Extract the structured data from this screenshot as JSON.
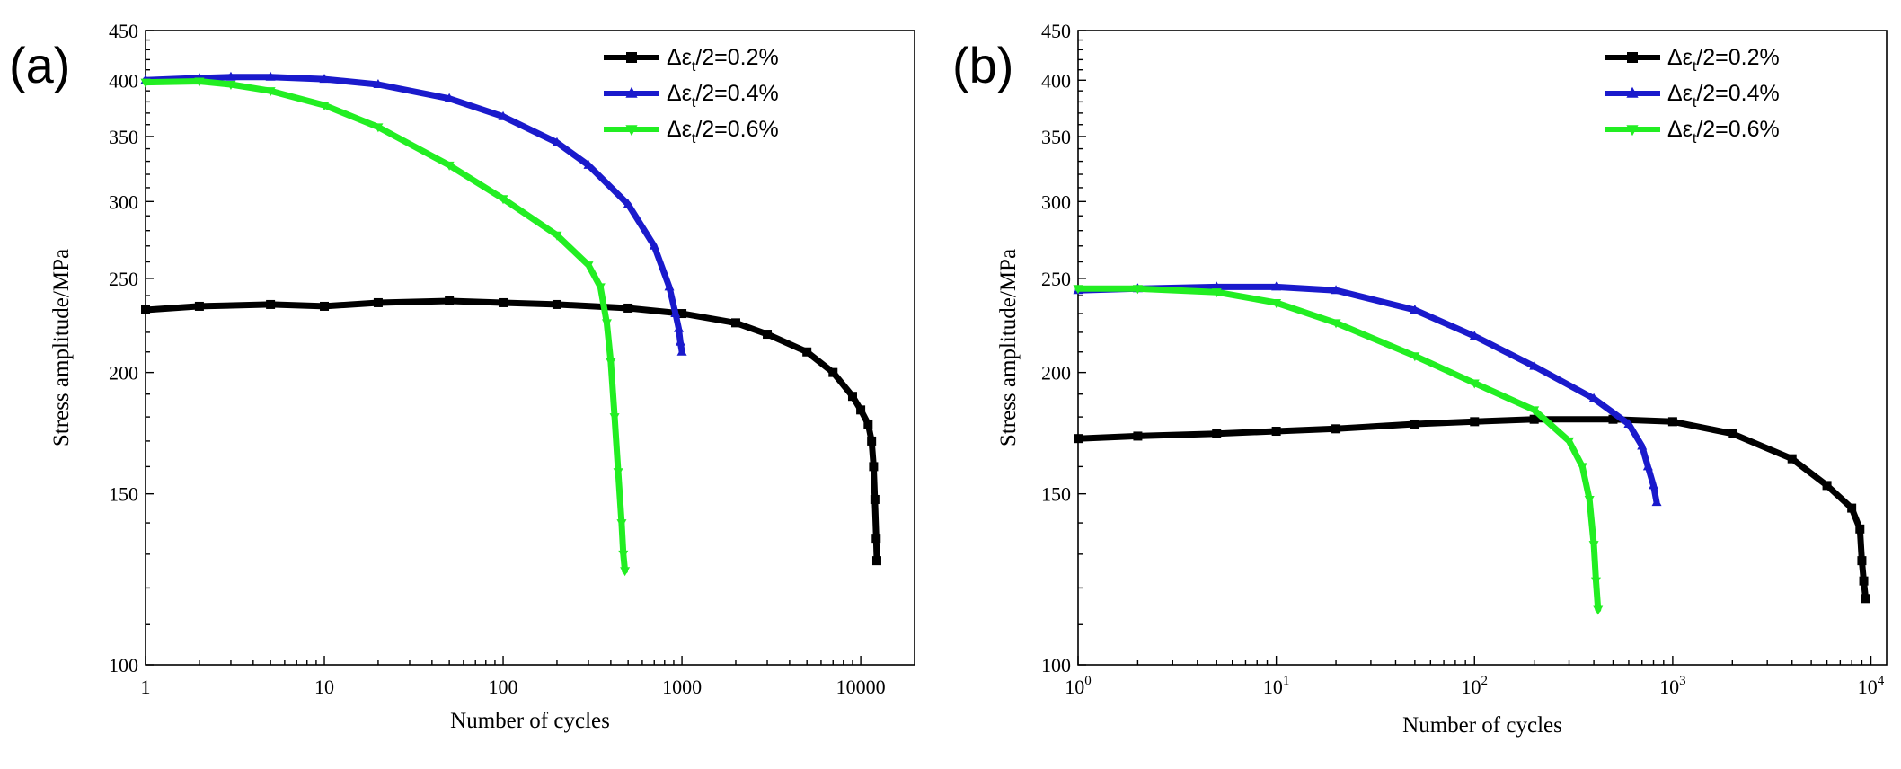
{
  "chart_data": [
    {
      "panel": "(a)",
      "type": "line",
      "xscale": "log",
      "yscale": "log",
      "xlim": [
        1,
        20000
      ],
      "ylim": [
        100,
        450
      ],
      "xlabel": "Number of cycles",
      "ylabel": "Stress amplitude/MPa",
      "xticks": [
        1,
        10,
        100,
        1000,
        10000
      ],
      "xtick_labels": [
        "1",
        "10",
        "100",
        "1000",
        "10000"
      ],
      "xtick_style": "plain",
      "yticks": [
        100,
        150,
        200,
        250,
        300,
        350,
        400,
        450
      ],
      "ytick_labels": [
        "100",
        "150",
        "200",
        "250",
        "300",
        "350",
        "400",
        "450"
      ],
      "legend_position": "top-right",
      "series": [
        {
          "name": "Δεt/2=0.2%",
          "legend_prefix": "Δε",
          "legend_sub": "t",
          "legend_suffix": "/2=0.2%",
          "color": "#000000",
          "marker": "square",
          "x": [
            1,
            2,
            5,
            10,
            20,
            50,
            100,
            200,
            500,
            1000,
            2000,
            3000,
            5000,
            7000,
            9000,
            10000,
            11000,
            11500,
            11800,
            12000,
            12200,
            12300
          ],
          "y": [
            232,
            234,
            235,
            234,
            236,
            237,
            236,
            235,
            233,
            230,
            225,
            219,
            210,
            200,
            189,
            183,
            177,
            170,
            160,
            148,
            135,
            128
          ]
        },
        {
          "name": "Δεt/2=0.4%",
          "legend_prefix": "Δε",
          "legend_sub": "t",
          "legend_suffix": "/2=0.4%",
          "color": "#1a1acc",
          "marker": "triangle-up",
          "x": [
            1,
            2,
            3,
            5,
            10,
            20,
            50,
            100,
            200,
            300,
            500,
            700,
            850,
            920,
            960,
            980,
            1000
          ],
          "y": [
            400,
            402,
            403,
            403,
            401,
            396,
            383,
            367,
            345,
            327,
            298,
            270,
            245,
            230,
            222,
            215,
            210
          ]
        },
        {
          "name": "Δεt/2=0.6%",
          "legend_prefix": "Δε",
          "legend_sub": "t",
          "legend_suffix": "/2=0.6%",
          "color": "#22ee22",
          "marker": "triangle-down",
          "x": [
            1,
            2,
            3,
            5,
            10,
            20,
            50,
            100,
            200,
            300,
            350,
            380,
            400,
            420,
            440,
            460,
            470,
            480
          ],
          "y": [
            398,
            399,
            396,
            390,
            377,
            358,
            327,
            302,
            277,
            258,
            245,
            225,
            205,
            180,
            158,
            140,
            130,
            125
          ]
        }
      ]
    },
    {
      "panel": "(b)",
      "type": "line",
      "xscale": "log",
      "yscale": "log",
      "xlim": [
        1,
        12000
      ],
      "ylim": [
        100,
        450
      ],
      "xlabel": "Number of cycles",
      "ylabel": "Stress amplitude/MPa",
      "xticks": [
        1,
        10,
        100,
        1000,
        10000
      ],
      "xtick_labels": [
        "10",
        "10",
        "10",
        "10",
        "10"
      ],
      "xtick_exponents": [
        "0",
        "1",
        "2",
        "3",
        "4"
      ],
      "xtick_style": "power",
      "yticks": [
        100,
        150,
        200,
        250,
        300,
        350,
        400,
        450
      ],
      "ytick_labels": [
        "100",
        "150",
        "200",
        "250",
        "300",
        "350",
        "400",
        "450"
      ],
      "legend_position": "top-right",
      "series": [
        {
          "name": "Δεt/2=0.2%",
          "legend_prefix": "Δε",
          "legend_sub": "t",
          "legend_suffix": "/2=0.2%",
          "color": "#000000",
          "marker": "square",
          "x": [
            1,
            2,
            5,
            10,
            20,
            50,
            100,
            200,
            500,
            1000,
            2000,
            4000,
            6000,
            8000,
            8800,
            9000,
            9200,
            9400
          ],
          "y": [
            171,
            172,
            173,
            174,
            175,
            177,
            178,
            179,
            179,
            178,
            173,
            163,
            153,
            145,
            138,
            128,
            122,
            117
          ]
        },
        {
          "name": "Δεt/2=0.4%",
          "legend_prefix": "Δε",
          "legend_sub": "t",
          "legend_suffix": "/2=0.4%",
          "color": "#1a1acc",
          "marker": "triangle-up",
          "x": [
            1,
            2,
            5,
            10,
            20,
            50,
            100,
            200,
            400,
            600,
            700,
            750,
            800,
            830
          ],
          "y": [
            243,
            244,
            245,
            245,
            243,
            232,
            218,
            203,
            188,
            177,
            168,
            160,
            153,
            147
          ]
        },
        {
          "name": "Δεt/2=0.6%",
          "legend_prefix": "Δε",
          "legend_sub": "t",
          "legend_suffix": "/2=0.6%",
          "color": "#22ee22",
          "marker": "triangle-down",
          "x": [
            1,
            2,
            5,
            10,
            20,
            50,
            100,
            200,
            300,
            350,
            380,
            400,
            410,
            420
          ],
          "y": [
            244,
            244,
            242,
            236,
            225,
            208,
            195,
            183,
            170,
            160,
            148,
            133,
            122,
            114
          ]
        }
      ]
    }
  ]
}
